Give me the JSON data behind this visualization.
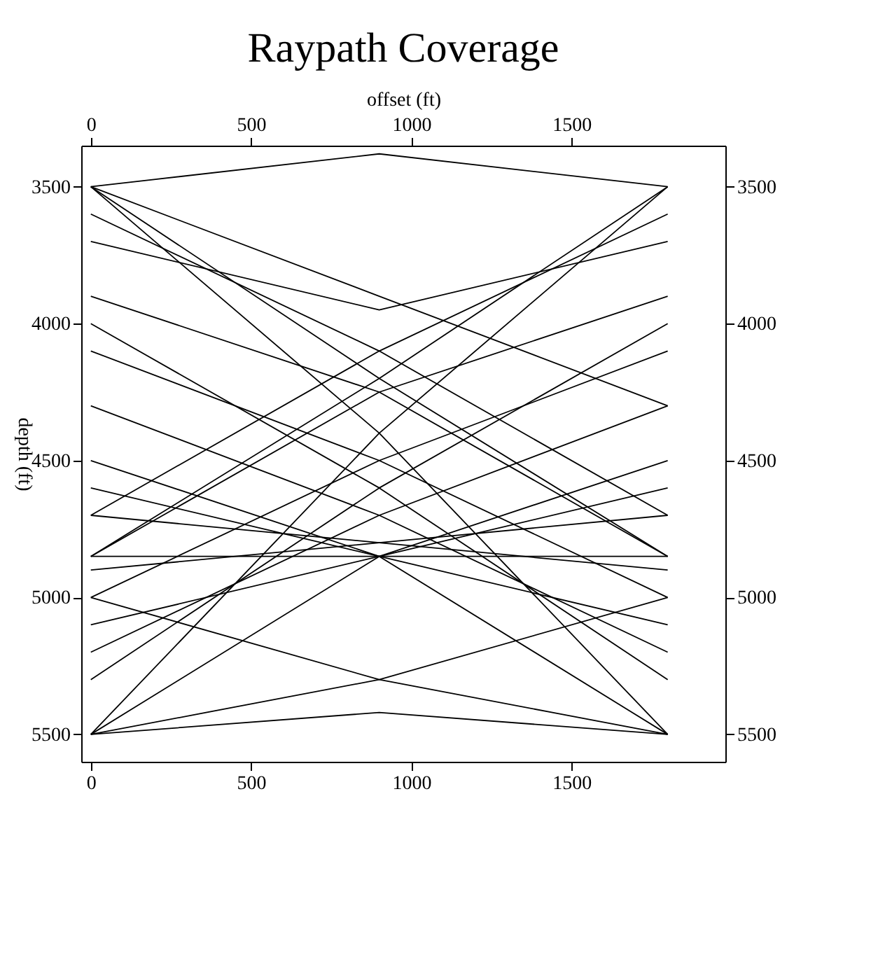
{
  "chart_data": {
    "type": "line",
    "title": "Raypath Coverage",
    "x2label": "offset (ft)",
    "ylabel": "depth (ft)",
    "x": [
      0,
      900,
      1800
    ],
    "xlim": [
      -30,
      1980
    ],
    "xticks": [
      0,
      500,
      1000,
      1500
    ],
    "x2lim": [
      -30,
      1980
    ],
    "x2ticks": [
      0,
      500,
      1000,
      1500
    ],
    "ylim": [
      5600,
      3350
    ],
    "yticks": [
      3500,
      4000,
      4500,
      5000,
      5500
    ],
    "y2lim": [
      5600,
      3350
    ],
    "y2ticks": [
      3500,
      4000,
      4500,
      5000,
      5500
    ],
    "grid": false,
    "legend": false,
    "marker": "none",
    "line_style": "solid",
    "relative": false,
    "series": [
      {
        "color": "#000000",
        "values": [
          3500,
          3380,
          3500
        ]
      },
      {
        "color": "#000000",
        "values": [
          3500,
          3900,
          4300
        ]
      },
      {
        "color": "#000000",
        "values": [
          3500,
          4200,
          4850
        ]
      },
      {
        "color": "#000000",
        "values": [
          3500,
          4400,
          5500
        ]
      },
      {
        "color": "#000000",
        "values": [
          4850,
          4200,
          3500
        ]
      },
      {
        "color": "#000000",
        "values": [
          5500,
          4400,
          3500
        ]
      },
      {
        "color": "#000000",
        "values": [
          3700,
          3950,
          3700
        ]
      },
      {
        "color": "#000000",
        "values": [
          3900,
          4250,
          4850
        ]
      },
      {
        "color": "#000000",
        "values": [
          4850,
          4250,
          3900
        ]
      },
      {
        "color": "#000000",
        "values": [
          4100,
          4500,
          5000
        ]
      },
      {
        "color": "#000000",
        "values": [
          5000,
          4500,
          4100
        ]
      },
      {
        "color": "#000000",
        "values": [
          4300,
          4700,
          5200
        ]
      },
      {
        "color": "#000000",
        "values": [
          5200,
          4700,
          4300
        ]
      },
      {
        "color": "#000000",
        "values": [
          4500,
          4850,
          5500
        ]
      },
      {
        "color": "#000000",
        "values": [
          5500,
          4850,
          4500
        ]
      },
      {
        "color": "#000000",
        "values": [
          4850,
          4850,
          4850
        ]
      },
      {
        "color": "#000000",
        "values": [
          4700,
          4800,
          4900
        ]
      },
      {
        "color": "#000000",
        "values": [
          4900,
          4800,
          4700
        ]
      },
      {
        "color": "#000000",
        "values": [
          5000,
          5300,
          5500
        ]
      },
      {
        "color": "#000000",
        "values": [
          5500,
          5300,
          5000
        ]
      },
      {
        "color": "#000000",
        "values": [
          5500,
          5420,
          5500
        ]
      },
      {
        "color": "#000000",
        "values": [
          4000,
          4600,
          5300
        ]
      },
      {
        "color": "#000000",
        "values": [
          5300,
          4600,
          4000
        ]
      },
      {
        "color": "#000000",
        "values": [
          4600,
          4850,
          5100
        ]
      },
      {
        "color": "#000000",
        "values": [
          5100,
          4850,
          4600
        ]
      },
      {
        "color": "#000000",
        "values": [
          3600,
          4100,
          4700
        ]
      },
      {
        "color": "#000000",
        "values": [
          4700,
          4100,
          3600
        ]
      }
    ]
  }
}
